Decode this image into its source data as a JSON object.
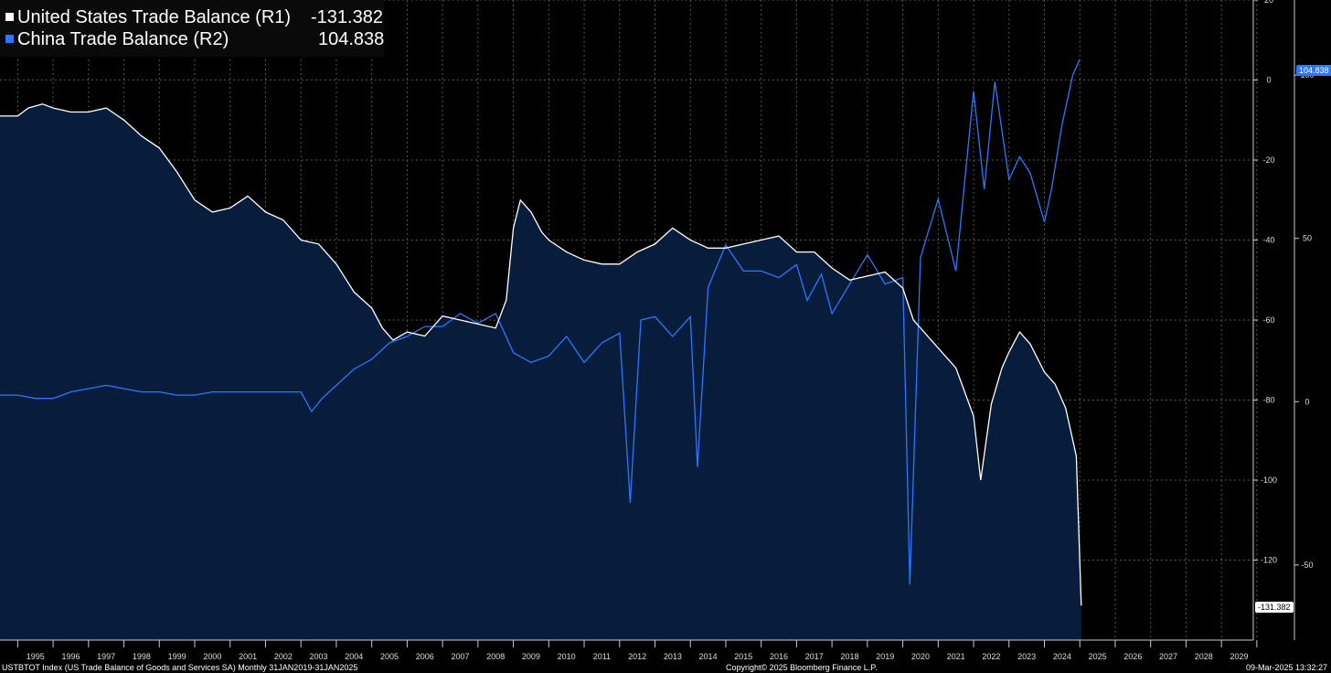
{
  "legend": [
    {
      "label": "United States Trade Balance (R1)",
      "value": "-131.382",
      "color": "#ffffff"
    },
    {
      "label": "China Trade Balance (R2)",
      "value": "104.838",
      "color": "#2a78ff"
    }
  ],
  "footer": {
    "left": "USTBTOT Index (US Trade Balance of Goods and Services SA)  Monthly 31JAN2019-31JAN2025",
    "center": "Copyright© 2025 Bloomberg Finance L.P.",
    "right": "09-Mar-2025 13:32:27"
  },
  "last_value_tags": {
    "china": "104.838",
    "us": "-131.382"
  },
  "chart_data": {
    "type": "line",
    "x_axis": {
      "range": [
        1994.5,
        2029.9
      ],
      "tick_labels": [
        "1995",
        "1996",
        "1997",
        "1998",
        "1999",
        "2000",
        "2001",
        "2002",
        "2003",
        "2004",
        "2005",
        "2006",
        "2007",
        "2008",
        "2009",
        "2010",
        "2011",
        "2012",
        "2013",
        "2014",
        "2015",
        "2016",
        "2017",
        "2018",
        "2019",
        "2020",
        "2021",
        "2022",
        "2023",
        "2024",
        "2025",
        "2026",
        "2027",
        "2028",
        "2029"
      ]
    },
    "axes": {
      "R1": {
        "range": [
          -140,
          20
        ],
        "ticks": [
          20,
          0,
          -20,
          -40,
          -60,
          -80,
          -100,
          -120
        ]
      },
      "R2": {
        "range": [
          -73,
          123
        ],
        "ticks": [
          100,
          50,
          0,
          -50
        ]
      }
    },
    "grid": true,
    "legend_position": "top-left",
    "series": [
      {
        "name": "United States Trade Balance (R1)",
        "axis": "R1",
        "color": "#ffffff",
        "fill": "#081c3c",
        "points": [
          [
            1994.5,
            -9
          ],
          [
            1995.0,
            -9
          ],
          [
            1995.3,
            -7
          ],
          [
            1995.7,
            -6
          ],
          [
            1996.0,
            -7
          ],
          [
            1996.5,
            -8
          ],
          [
            1997.0,
            -8
          ],
          [
            1997.5,
            -7
          ],
          [
            1998.0,
            -10
          ],
          [
            1998.5,
            -14
          ],
          [
            1999.0,
            -17
          ],
          [
            1999.5,
            -23
          ],
          [
            2000.0,
            -30
          ],
          [
            2000.5,
            -33
          ],
          [
            2001.0,
            -32
          ],
          [
            2001.5,
            -29
          ],
          [
            2002.0,
            -33
          ],
          [
            2002.5,
            -35
          ],
          [
            2003.0,
            -40
          ],
          [
            2003.5,
            -41
          ],
          [
            2004.0,
            -46
          ],
          [
            2004.5,
            -53
          ],
          [
            2005.0,
            -57
          ],
          [
            2005.3,
            -62
          ],
          [
            2005.6,
            -65
          ],
          [
            2006.0,
            -63
          ],
          [
            2006.5,
            -64
          ],
          [
            2007.0,
            -59
          ],
          [
            2007.5,
            -60
          ],
          [
            2008.0,
            -61
          ],
          [
            2008.5,
            -62
          ],
          [
            2008.8,
            -55
          ],
          [
            2009.0,
            -37
          ],
          [
            2009.2,
            -30
          ],
          [
            2009.5,
            -33
          ],
          [
            2009.8,
            -38
          ],
          [
            2010.0,
            -40
          ],
          [
            2010.5,
            -43
          ],
          [
            2011.0,
            -45
          ],
          [
            2011.5,
            -46
          ],
          [
            2012.0,
            -46
          ],
          [
            2012.5,
            -43
          ],
          [
            2013.0,
            -41
          ],
          [
            2013.5,
            -37
          ],
          [
            2014.0,
            -40
          ],
          [
            2014.5,
            -42
          ],
          [
            2015.0,
            -42
          ],
          [
            2015.5,
            -41
          ],
          [
            2016.0,
            -40
          ],
          [
            2016.5,
            -39
          ],
          [
            2017.0,
            -43
          ],
          [
            2017.5,
            -43
          ],
          [
            2018.0,
            -47
          ],
          [
            2018.5,
            -50
          ],
          [
            2019.0,
            -49
          ],
          [
            2019.5,
            -48
          ],
          [
            2020.0,
            -52
          ],
          [
            2020.3,
            -60
          ],
          [
            2020.6,
            -63
          ],
          [
            2021.0,
            -67
          ],
          [
            2021.5,
            -72
          ],
          [
            2022.0,
            -84
          ],
          [
            2022.2,
            -100
          ],
          [
            2022.5,
            -81
          ],
          [
            2022.8,
            -72
          ],
          [
            2023.0,
            -68
          ],
          [
            2023.3,
            -63
          ],
          [
            2023.6,
            -66
          ],
          [
            2024.0,
            -73
          ],
          [
            2024.3,
            -76
          ],
          [
            2024.6,
            -82
          ],
          [
            2024.9,
            -94
          ],
          [
            2025.04,
            -131.382
          ]
        ]
      },
      {
        "name": "China Trade Balance (R2)",
        "axis": "R2",
        "color": "#2a78ff",
        "points": [
          [
            1994.5,
            2
          ],
          [
            1995.0,
            2
          ],
          [
            1995.5,
            1
          ],
          [
            1996.0,
            1
          ],
          [
            1996.5,
            3
          ],
          [
            1997.0,
            4
          ],
          [
            1997.5,
            5
          ],
          [
            1998.0,
            4
          ],
          [
            1998.5,
            3
          ],
          [
            1999.0,
            3
          ],
          [
            1999.5,
            2
          ],
          [
            2000.0,
            2
          ],
          [
            2000.5,
            3
          ],
          [
            2001.0,
            3
          ],
          [
            2001.5,
            3
          ],
          [
            2002.0,
            3
          ],
          [
            2002.5,
            3
          ],
          [
            2003.0,
            3
          ],
          [
            2003.3,
            -3
          ],
          [
            2003.6,
            1
          ],
          [
            2004.0,
            5
          ],
          [
            2004.5,
            10
          ],
          [
            2005.0,
            13
          ],
          [
            2005.5,
            18
          ],
          [
            2006.0,
            20
          ],
          [
            2006.5,
            23
          ],
          [
            2007.0,
            23
          ],
          [
            2007.5,
            27
          ],
          [
            2008.0,
            24
          ],
          [
            2008.5,
            27
          ],
          [
            2009.0,
            15
          ],
          [
            2009.5,
            12
          ],
          [
            2010.0,
            14
          ],
          [
            2010.5,
            20
          ],
          [
            2011.0,
            12
          ],
          [
            2011.5,
            18
          ],
          [
            2012.0,
            21
          ],
          [
            2012.3,
            -31
          ],
          [
            2012.6,
            25
          ],
          [
            2013.0,
            26
          ],
          [
            2013.5,
            20
          ],
          [
            2014.0,
            26
          ],
          [
            2014.2,
            -20
          ],
          [
            2014.5,
            35
          ],
          [
            2015.0,
            48
          ],
          [
            2015.5,
            40
          ],
          [
            2016.0,
            40
          ],
          [
            2016.5,
            38
          ],
          [
            2017.0,
            42
          ],
          [
            2017.3,
            31
          ],
          [
            2017.7,
            39
          ],
          [
            2018.0,
            27
          ],
          [
            2018.5,
            36
          ],
          [
            2019.0,
            45
          ],
          [
            2019.5,
            36
          ],
          [
            2020.0,
            38
          ],
          [
            2020.2,
            -56
          ],
          [
            2020.5,
            44
          ],
          [
            2020.8,
            55
          ],
          [
            2021.0,
            62
          ],
          [
            2021.5,
            40
          ],
          [
            2022.0,
            95
          ],
          [
            2022.3,
            65
          ],
          [
            2022.6,
            98
          ],
          [
            2023.0,
            68
          ],
          [
            2023.3,
            75
          ],
          [
            2023.6,
            70
          ],
          [
            2024.0,
            55
          ],
          [
            2024.2,
            65
          ],
          [
            2024.5,
            85
          ],
          [
            2024.8,
            100
          ],
          [
            2025.0,
            104.838
          ]
        ]
      }
    ]
  }
}
